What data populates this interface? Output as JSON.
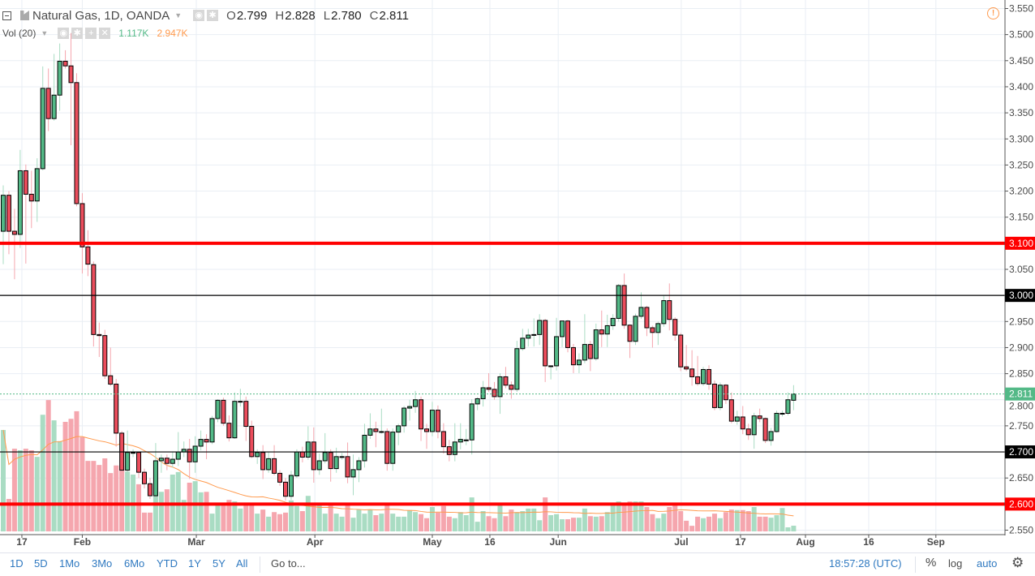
{
  "legend": {
    "symbol": "Natural Gas, 1D, OANDA",
    "o_label": "O",
    "o": "2.799",
    "h_label": "H",
    "h": "2.828",
    "l_label": "L",
    "l": "2.780",
    "c_label": "C",
    "c": "2.811",
    "vol_label": "Vol (20)",
    "vol_value": "1.117K",
    "vol_ma": "2.947K"
  },
  "toolbar": {
    "ranges": [
      "1D",
      "5D",
      "1Mo",
      "3Mo",
      "6Mo",
      "YTD",
      "1Y",
      "5Y",
      "All"
    ],
    "goto": "Go to...",
    "time": "18:57:28 (UTC)",
    "percent": "%",
    "log": "log",
    "auto": "auto"
  },
  "colors": {
    "up": "#53b987",
    "down": "#eb4d5c",
    "up_wick": "#a9dcc3",
    "down_wick": "#f5a6ae",
    "level_red": "#ff0000",
    "vol_ma": "#ff9a4d",
    "auto": "#2f79c0"
  },
  "chart_data": {
    "type": "candlestick",
    "title": "Natural Gas, 1D, OANDA",
    "ylim": [
      2.55,
      3.55
    ],
    "yticks": [
      "3.550",
      "3.500",
      "3.450",
      "3.400",
      "3.350",
      "3.300",
      "3.250",
      "3.200",
      "3.150",
      "3.100",
      "3.050",
      "3.000",
      "2.950",
      "2.900",
      "2.850",
      "2.800",
      "2.750",
      "2.700",
      "2.650",
      "2.600",
      "2.550"
    ],
    "xticks": [
      {
        "label": "17",
        "bar": 3.3
      },
      {
        "label": "Feb",
        "bar": 14
      },
      {
        "label": "Mar",
        "bar": 34.2
      },
      {
        "label": "Apr",
        "bar": 55.2
      },
      {
        "label": "May",
        "bar": 76
      },
      {
        "label": "16",
        "bar": 86.2
      },
      {
        "label": "Jun",
        "bar": 98.3
      },
      {
        "label": "Jul",
        "bar": 120.1
      },
      {
        "label": "17",
        "bar": 130.6
      },
      {
        "label": "Aug",
        "bar": 142.1
      },
      {
        "label": "16",
        "bar": 153.3
      },
      {
        "label": "Sep",
        "bar": 165.2
      }
    ],
    "levels": [
      {
        "price": 3.1,
        "label": "3.100",
        "style": "red"
      },
      {
        "price": 3.0,
        "label": "3.000",
        "style": "black"
      },
      {
        "price": 2.7,
        "label": "2.700",
        "style": "black"
      },
      {
        "price": 2.6,
        "label": "2.600",
        "style": "red"
      }
    ],
    "last_price": {
      "price": 2.811,
      "label": "2.811"
    },
    "volume_unit": "K",
    "volume_ma_period": 20,
    "candles": [
      [
        3.123,
        3.211,
        3.06,
        3.192
      ],
      [
        3.192,
        3.2,
        3.079,
        3.123
      ],
      [
        3.123,
        3.166,
        3.031,
        3.117
      ],
      [
        3.117,
        3.279,
        3.091,
        3.239
      ],
      [
        3.239,
        3.251,
        3.061,
        3.194
      ],
      [
        3.194,
        3.239,
        3.129,
        3.181
      ],
      [
        3.181,
        3.263,
        3.141,
        3.243
      ],
      [
        3.243,
        3.439,
        3.24,
        3.397
      ],
      [
        3.397,
        3.435,
        3.315,
        3.339
      ],
      [
        3.339,
        3.463,
        3.335,
        3.384
      ],
      [
        3.384,
        3.483,
        3.354,
        3.449
      ],
      [
        3.449,
        3.47,
        3.435,
        3.44
      ],
      [
        3.44,
        3.503,
        3.288,
        3.408
      ],
      [
        3.408,
        3.426,
        3.171,
        3.176
      ],
      [
        3.176,
        3.196,
        3.042,
        3.093
      ],
      [
        3.093,
        3.125,
        3.037,
        3.06
      ],
      [
        3.059,
        3.065,
        2.902,
        2.925
      ],
      [
        2.925,
        2.948,
        2.882,
        2.923
      ],
      [
        2.923,
        2.934,
        2.84,
        2.846
      ],
      [
        2.846,
        2.9,
        2.826,
        2.83
      ],
      [
        2.83,
        2.84,
        2.71,
        2.736
      ],
      [
        2.736,
        2.74,
        2.66,
        2.665
      ],
      [
        2.665,
        2.741,
        2.66,
        2.699
      ],
      [
        2.699,
        2.705,
        2.69,
        2.699
      ],
      [
        2.699,
        2.7,
        2.65,
        2.661
      ],
      [
        2.661,
        2.668,
        2.63,
        2.639
      ],
      [
        2.639,
        2.65,
        2.61,
        2.616
      ],
      [
        2.616,
        2.717,
        2.612,
        2.683
      ],
      [
        2.683,
        2.695,
        2.66,
        2.688
      ],
      [
        2.688,
        2.695,
        2.665,
        2.678
      ],
      [
        2.678,
        2.7,
        2.67,
        2.686
      ],
      [
        2.686,
        2.738,
        2.673,
        2.7
      ],
      [
        2.7,
        2.72,
        2.69,
        2.705
      ],
      [
        2.705,
        2.725,
        2.648,
        2.681
      ],
      [
        2.681,
        2.73,
        2.66,
        2.711
      ],
      [
        2.711,
        2.741,
        2.703,
        2.724
      ],
      [
        2.724,
        2.734,
        2.686,
        2.719
      ],
      [
        2.719,
        2.769,
        2.715,
        2.764
      ],
      [
        2.764,
        2.801,
        2.757,
        2.799
      ],
      [
        2.799,
        2.804,
        2.75,
        2.755
      ],
      [
        2.755,
        2.77,
        2.72,
        2.727
      ],
      [
        2.727,
        2.814,
        2.725,
        2.797
      ],
      [
        2.797,
        2.821,
        2.787,
        2.797
      ],
      [
        2.797,
        2.806,
        2.721,
        2.749
      ],
      [
        2.749,
        2.76,
        2.688,
        2.691
      ],
      [
        2.691,
        2.705,
        2.677,
        2.699
      ],
      [
        2.699,
        2.713,
        2.648,
        2.666
      ],
      [
        2.666,
        2.7,
        2.66,
        2.687
      ],
      [
        2.687,
        2.713,
        2.655,
        2.659
      ],
      [
        2.659,
        2.665,
        2.635,
        2.642
      ],
      [
        2.642,
        2.65,
        2.607,
        2.615
      ],
      [
        2.615,
        2.664,
        2.608,
        2.655
      ],
      [
        2.654,
        2.705,
        2.65,
        2.7
      ],
      [
        2.7,
        2.71,
        2.68,
        2.69
      ],
      [
        2.69,
        2.749,
        2.685,
        2.719
      ],
      [
        2.719,
        2.747,
        2.641,
        2.666
      ],
      [
        2.666,
        2.697,
        2.656,
        2.683
      ],
      [
        2.683,
        2.736,
        2.678,
        2.699
      ],
      [
        2.699,
        2.705,
        2.643,
        2.668
      ],
      [
        2.668,
        2.708,
        2.66,
        2.691
      ],
      [
        2.691,
        2.698,
        2.685,
        2.691
      ],
      [
        2.691,
        2.718,
        2.64,
        2.652
      ],
      [
        2.652,
        2.695,
        2.617,
        2.666
      ],
      [
        2.666,
        2.69,
        2.642,
        2.683
      ],
      [
        2.683,
        2.754,
        2.67,
        2.732
      ],
      [
        2.732,
        2.774,
        2.725,
        2.744
      ],
      [
        2.744,
        2.758,
        2.709,
        2.739
      ],
      [
        2.739,
        2.783,
        2.735,
        2.739
      ],
      [
        2.739,
        2.745,
        2.664,
        2.678
      ],
      [
        2.678,
        2.745,
        2.664,
        2.738
      ],
      [
        2.738,
        2.754,
        2.713,
        2.75
      ],
      [
        2.75,
        2.788,
        2.737,
        2.784
      ],
      [
        2.784,
        2.8,
        2.76,
        2.787
      ],
      [
        2.787,
        2.817,
        2.775,
        2.8
      ],
      [
        2.8,
        2.806,
        2.721,
        2.744
      ],
      [
        2.744,
        2.754,
        2.706,
        2.739
      ],
      [
        2.739,
        2.796,
        2.73,
        2.78
      ],
      [
        2.78,
        2.789,
        2.726,
        2.739
      ],
      [
        2.739,
        2.755,
        2.697,
        2.71
      ],
      [
        2.71,
        2.723,
        2.682,
        2.695
      ],
      [
        2.695,
        2.755,
        2.682,
        2.719
      ],
      [
        2.719,
        2.755,
        2.705,
        2.724
      ],
      [
        2.723,
        2.744,
        2.713,
        2.723
      ],
      [
        2.723,
        2.801,
        2.695,
        2.792
      ],
      [
        2.792,
        2.805,
        2.78,
        2.802
      ],
      [
        2.802,
        2.836,
        2.787,
        2.823
      ],
      [
        2.823,
        2.851,
        2.815,
        2.82
      ],
      [
        2.82,
        2.834,
        2.8,
        2.806
      ],
      [
        2.806,
        2.851,
        2.773,
        2.844
      ],
      [
        2.844,
        2.863,
        2.822,
        2.828
      ],
      [
        2.828,
        2.835,
        2.802,
        2.82
      ],
      [
        2.82,
        2.913,
        2.815,
        2.898
      ],
      [
        2.898,
        2.936,
        2.894,
        2.918
      ],
      [
        2.918,
        2.936,
        2.902,
        2.924
      ],
      [
        2.925,
        2.956,
        2.902,
        2.925
      ],
      [
        2.925,
        2.964,
        2.905,
        2.952
      ],
      [
        2.952,
        2.955,
        2.834,
        2.865
      ],
      [
        2.865,
        2.866,
        2.839,
        2.865
      ],
      [
        2.865,
        2.957,
        2.856,
        2.921
      ],
      [
        2.921,
        2.951,
        2.901,
        2.951
      ],
      [
        2.951,
        2.953,
        2.891,
        2.9
      ],
      [
        2.9,
        2.907,
        2.851,
        2.867
      ],
      [
        2.867,
        2.889,
        2.851,
        2.876
      ],
      [
        2.876,
        2.964,
        2.87,
        2.906
      ],
      [
        2.906,
        2.913,
        2.855,
        2.879
      ],
      [
        2.879,
        2.946,
        2.875,
        2.934
      ],
      [
        2.934,
        2.971,
        2.901,
        2.926
      ],
      [
        2.926,
        2.963,
        2.901,
        2.942
      ],
      [
        2.942,
        2.964,
        2.934,
        2.956
      ],
      [
        2.956,
        3.022,
        2.95,
        3.019
      ],
      [
        3.019,
        3.042,
        2.936,
        2.943
      ],
      [
        2.943,
        2.945,
        2.88,
        2.912
      ],
      [
        2.912,
        2.965,
        2.905,
        2.96
      ],
      [
        2.96,
        3.006,
        2.955,
        2.977
      ],
      [
        2.977,
        2.98,
        2.922,
        2.938
      ],
      [
        2.938,
        2.942,
        2.9,
        2.929
      ],
      [
        2.929,
        2.95,
        2.905,
        2.946
      ],
      [
        2.946,
        3.001,
        2.94,
        2.99
      ],
      [
        2.99,
        3.023,
        2.933,
        2.954
      ],
      [
        2.954,
        2.958,
        2.913,
        2.924
      ],
      [
        2.924,
        2.928,
        2.855,
        2.863
      ],
      [
        2.863,
        2.905,
        2.855,
        2.859
      ],
      [
        2.859,
        2.895,
        2.827,
        2.844
      ],
      [
        2.844,
        2.884,
        2.827,
        2.831
      ],
      [
        2.831,
        2.863,
        2.827,
        2.858
      ],
      [
        2.858,
        2.866,
        2.819,
        2.83
      ],
      [
        2.83,
        2.837,
        2.78,
        2.785
      ],
      [
        2.785,
        2.833,
        2.78,
        2.828
      ],
      [
        2.828,
        2.83,
        2.792,
        2.8
      ],
      [
        2.8,
        2.814,
        2.755,
        2.759
      ],
      [
        2.759,
        2.779,
        2.752,
        2.767
      ],
      [
        2.767,
        2.788,
        2.734,
        2.744
      ],
      [
        2.744,
        2.754,
        2.723,
        2.733
      ],
      [
        2.733,
        2.775,
        2.706,
        2.769
      ],
      [
        2.769,
        2.783,
        2.757,
        2.764
      ],
      [
        2.764,
        2.766,
        2.717,
        2.722
      ],
      [
        2.722,
        2.746,
        2.712,
        2.739
      ],
      [
        2.739,
        2.779,
        2.737,
        2.774
      ],
      [
        2.774,
        2.779,
        2.768,
        2.774
      ],
      [
        2.774,
        2.814,
        2.77,
        2.8
      ],
      [
        2.799,
        2.828,
        2.78,
        2.811
      ]
    ],
    "volume": [
      20.0,
      6.4,
      16.3,
      16.0,
      16.3,
      16.0,
      14.7,
      23.0,
      25.9,
      21.9,
      17.8,
      21.6,
      22.2,
      23.7,
      18.6,
      13.9,
      13.9,
      13.1,
      14.4,
      11.5,
      13.0,
      13.0,
      11.8,
      11.2,
      9.3,
      3.7,
      3.7,
      7.8,
      7.8,
      8.3,
      11.2,
      11.7,
      6.2,
      9.6,
      9.9,
      7.7,
      7.8,
      3.5,
      5.1,
      5.1,
      6.2,
      5.9,
      4.5,
      5.1,
      5.1,
      3.5,
      4.3,
      2.9,
      3.8,
      3.4,
      3.7,
      6.1,
      5.0,
      4.0,
      7.0,
      5.1,
      5.1,
      3.5,
      5.1,
      3.5,
      2.9,
      5.6,
      2.7,
      4.3,
      3.5,
      4.3,
      3.2,
      3.5,
      5.6,
      3.5,
      2.9,
      2.9,
      4.2,
      3.8,
      3.4,
      2.6,
      4.8,
      3.7,
      5.0,
      2.9,
      2.6,
      3.8,
      3.2,
      6.7,
      1.9,
      4.0,
      3.0,
      2.6,
      5.1,
      3.0,
      4.3,
      3.8,
      4.0,
      4.5,
      4.5,
      2.2,
      6.7,
      3.2,
      3.4,
      2.4,
      2.4,
      2.7,
      2.7,
      4.5,
      3.0,
      2.9,
      3.0,
      3.8,
      5.1,
      5.9,
      5.3,
      5.9,
      5.9,
      5.9,
      4.8,
      3.4,
      2.6,
      3.5,
      4.8,
      5.3,
      4.0,
      2.1,
      1.1,
      2.9,
      2.6,
      2.9,
      3.5,
      2.6,
      3.8,
      4.3,
      4.2,
      4.2,
      4.0,
      4.8,
      2.9,
      2.9,
      2.7,
      3.2,
      4.6,
      0.8,
      1.117
    ]
  }
}
